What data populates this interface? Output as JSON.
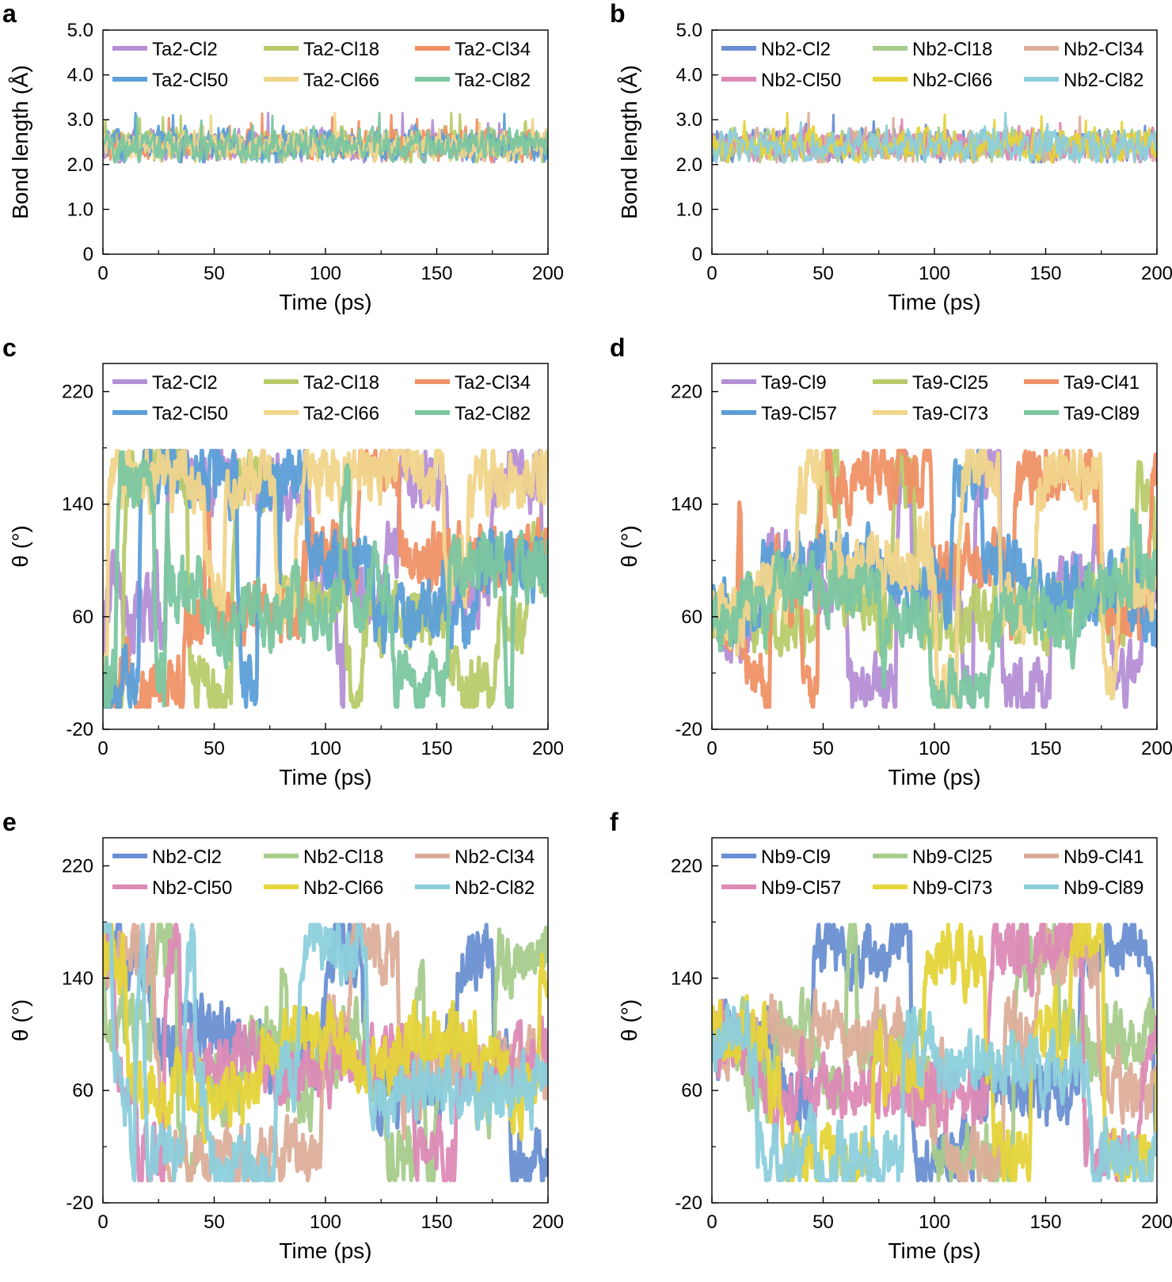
{
  "chart_data": [
    {
      "panel": "a",
      "type": "line",
      "xlabel": "Time (ps)",
      "ylabel": "Bond length (Å)",
      "xlim": [
        0,
        200
      ],
      "ylim": [
        0,
        5
      ],
      "xticks": [
        "0",
        "50",
        "100",
        "150",
        "200"
      ],
      "yticks": [
        "0",
        "1.0",
        "2.0",
        "3.0",
        "4.0",
        "5.0"
      ],
      "legend_position": "top",
      "signal": {
        "kind": "bond",
        "seed": 11
      },
      "series": [
        {
          "name": "Ta2-Cl2",
          "color": "#b58fd6"
        },
        {
          "name": "Ta2-Cl18",
          "color": "#b8cb6a"
        },
        {
          "name": "Ta2-Cl34",
          "color": "#ef9166"
        },
        {
          "name": "Ta2-Cl50",
          "color": "#5c9fd8"
        },
        {
          "name": "Ta2-Cl66",
          "color": "#f1d58b"
        },
        {
          "name": "Ta2-Cl82",
          "color": "#7bc6a0"
        }
      ]
    },
    {
      "panel": "b",
      "type": "line",
      "xlabel": "Time (ps)",
      "ylabel": "Bond length (Å)",
      "xlim": [
        0,
        200
      ],
      "ylim": [
        0,
        5
      ],
      "xticks": [
        "0",
        "50",
        "100",
        "150",
        "200"
      ],
      "yticks": [
        "0",
        "1.0",
        "2.0",
        "3.0",
        "4.0",
        "5.0"
      ],
      "legend_position": "top",
      "signal": {
        "kind": "bond",
        "seed": 23
      },
      "series": [
        {
          "name": "Nb2-Cl2",
          "color": "#6a8fd2"
        },
        {
          "name": "Nb2-Cl18",
          "color": "#a7cc8c"
        },
        {
          "name": "Nb2-Cl34",
          "color": "#dcae9a"
        },
        {
          "name": "Nb2-Cl50",
          "color": "#dc8ab6"
        },
        {
          "name": "Nb2-Cl66",
          "color": "#e5d43a"
        },
        {
          "name": "Nb2-Cl82",
          "color": "#8ccfdc"
        }
      ]
    },
    {
      "panel": "c",
      "type": "line",
      "xlabel": "Time (ps)",
      "ylabel": "θ (°)",
      "xlim": [
        0,
        200
      ],
      "ylim": [
        -20,
        240
      ],
      "xticks": [
        "0",
        "50",
        "100",
        "150",
        "200"
      ],
      "yticks": [
        "-20",
        "60",
        "140",
        "220"
      ],
      "legend_position": "top",
      "signal": {
        "kind": "angle",
        "seed": 37
      },
      "series": [
        {
          "name": "Ta2-Cl2",
          "color": "#b58fd6"
        },
        {
          "name": "Ta2-Cl18",
          "color": "#b8cb6a"
        },
        {
          "name": "Ta2-Cl34",
          "color": "#ef9166"
        },
        {
          "name": "Ta2-Cl50",
          "color": "#5c9fd8"
        },
        {
          "name": "Ta2-Cl66",
          "color": "#f1d58b"
        },
        {
          "name": "Ta2-Cl82",
          "color": "#7bc6a0"
        }
      ]
    },
    {
      "panel": "d",
      "type": "line",
      "xlabel": "Time (ps)",
      "ylabel": "θ (°)",
      "xlim": [
        0,
        200
      ],
      "ylim": [
        -20,
        240
      ],
      "xticks": [
        "0",
        "50",
        "100",
        "150",
        "200"
      ],
      "yticks": [
        "-20",
        "60",
        "140",
        "220"
      ],
      "legend_position": "top",
      "signal": {
        "kind": "angle",
        "seed": 41
      },
      "series": [
        {
          "name": "Ta9-Cl9",
          "color": "#b58fd6"
        },
        {
          "name": "Ta9-Cl25",
          "color": "#b8cb6a"
        },
        {
          "name": "Ta9-Cl41",
          "color": "#ef9166"
        },
        {
          "name": "Ta9-Cl57",
          "color": "#5c9fd8"
        },
        {
          "name": "Ta9-Cl73",
          "color": "#f1d58b"
        },
        {
          "name": "Ta9-Cl89",
          "color": "#7bc6a0"
        }
      ]
    },
    {
      "panel": "e",
      "type": "line",
      "xlabel": "Time (ps)",
      "ylabel": "θ (°)",
      "xlim": [
        0,
        200
      ],
      "ylim": [
        -20,
        240
      ],
      "xticks": [
        "0",
        "50",
        "100",
        "150",
        "200"
      ],
      "yticks": [
        "-20",
        "60",
        "140",
        "220"
      ],
      "legend_position": "top",
      "signal": {
        "kind": "angle",
        "seed": 53
      },
      "series": [
        {
          "name": "Nb2-Cl2",
          "color": "#6a8fd2"
        },
        {
          "name": "Nb2-Cl18",
          "color": "#a7cc8c"
        },
        {
          "name": "Nb2-Cl34",
          "color": "#dcae9a"
        },
        {
          "name": "Nb2-Cl50",
          "color": "#dc8ab6"
        },
        {
          "name": "Nb2-Cl66",
          "color": "#e5d43a"
        },
        {
          "name": "Nb2-Cl82",
          "color": "#8ccfdc"
        }
      ]
    },
    {
      "panel": "f",
      "type": "line",
      "xlabel": "Time (ps)",
      "ylabel": "θ (°)",
      "xlim": [
        0,
        200
      ],
      "ylim": [
        -20,
        240
      ],
      "xticks": [
        "0",
        "50",
        "100",
        "150",
        "200"
      ],
      "yticks": [
        "-20",
        "60",
        "140",
        "220"
      ],
      "legend_position": "top",
      "signal": {
        "kind": "angle",
        "seed": 67
      },
      "series": [
        {
          "name": "Nb9-Cl9",
          "color": "#6a8fd2"
        },
        {
          "name": "Nb9-Cl25",
          "color": "#a7cc8c"
        },
        {
          "name": "Nb9-Cl41",
          "color": "#dcae9a"
        },
        {
          "name": "Nb9-Cl57",
          "color": "#dc8ab6"
        },
        {
          "name": "Nb9-Cl73",
          "color": "#e5d43a"
        },
        {
          "name": "Nb9-Cl89",
          "color": "#8ccfdc"
        }
      ]
    }
  ]
}
